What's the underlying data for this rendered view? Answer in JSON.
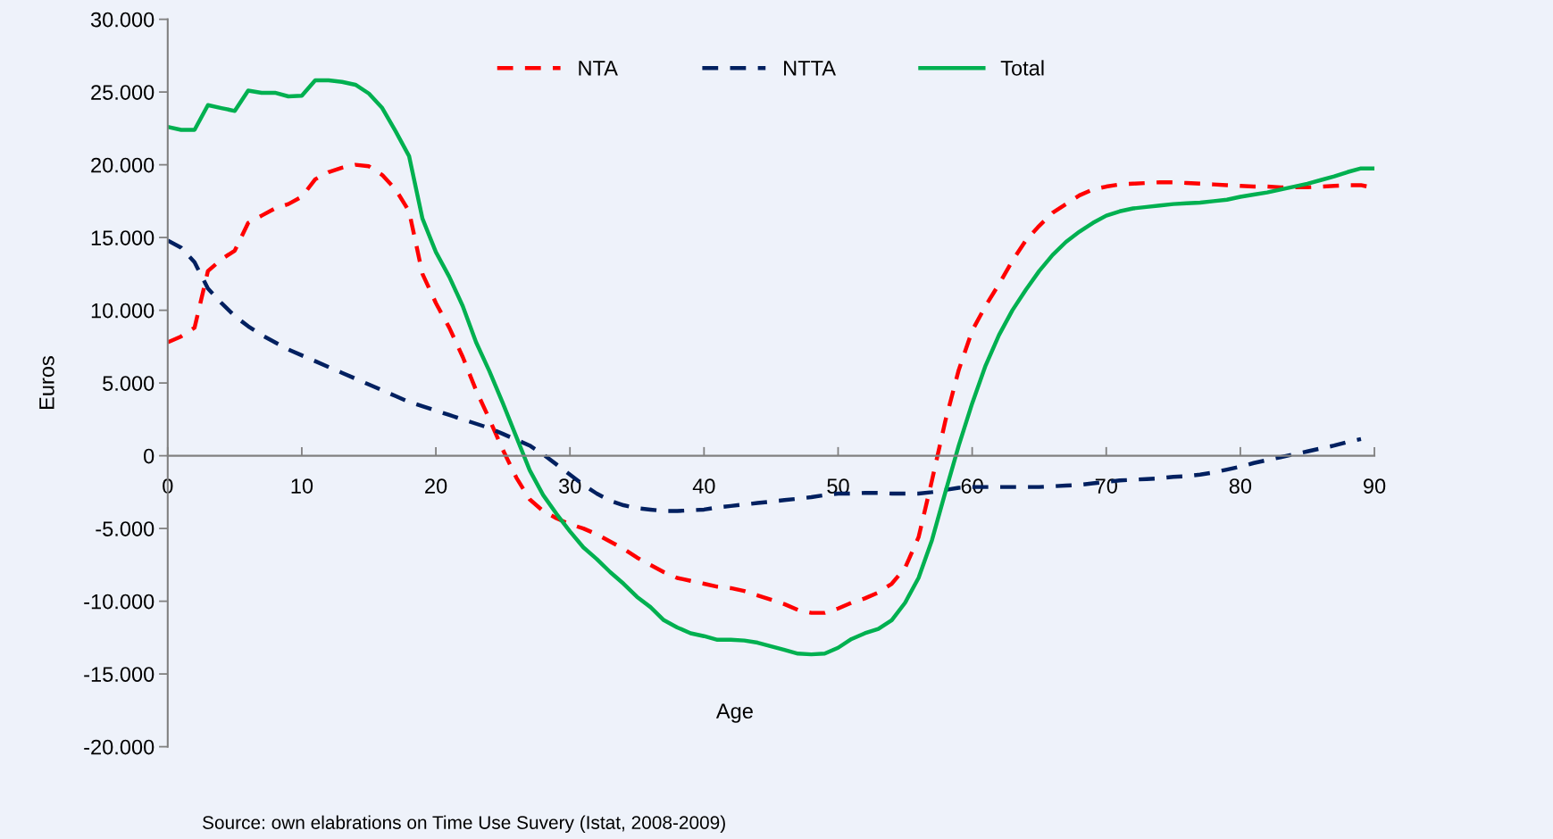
{
  "chart_data": {
    "type": "line",
    "xlabel": "Age",
    "ylabel": "Euros",
    "annotations": [
      "Source: own elabrations on Time Use Suvery (Istat, 2008-2009)"
    ],
    "x": [
      0,
      1,
      2,
      3,
      4,
      5,
      6,
      7,
      8,
      9,
      10,
      11,
      12,
      13,
      14,
      15,
      16,
      17,
      18,
      19,
      20,
      21,
      22,
      23,
      24,
      25,
      26,
      27,
      28,
      29,
      30,
      31,
      32,
      33,
      34,
      35,
      36,
      37,
      38,
      39,
      40,
      41,
      42,
      43,
      44,
      45,
      46,
      47,
      48,
      49,
      50,
      51,
      52,
      53,
      54,
      55,
      56,
      57,
      58,
      59,
      60,
      61,
      62,
      63,
      64,
      65,
      66,
      67,
      68,
      69,
      70,
      71,
      72,
      73,
      74,
      75,
      76,
      77,
      78,
      79,
      80,
      81,
      82,
      83,
      84,
      85,
      86,
      87,
      88,
      89,
      90
    ],
    "series": [
      {
        "name": "NTA",
        "color": "#ff0000",
        "line_style": "dashed",
        "values": [
          7800,
          8200,
          8800,
          12700,
          13500,
          14100,
          16000,
          16500,
          17000,
          17300,
          17800,
          19000,
          19500,
          19800,
          20000,
          19900,
          19300,
          18300,
          16800,
          12500,
          10500,
          8800,
          6800,
          4500,
          2500,
          400,
          -1500,
          -3000,
          -3800,
          -4300,
          -4700,
          -5000,
          -5400,
          -5900,
          -6400,
          -7000,
          -7500,
          -8000,
          -8400,
          -8600,
          -8800,
          -9000,
          -9100,
          -9300,
          -9600,
          -9900,
          -10200,
          -10600,
          -10800,
          -10800,
          -10500,
          -10100,
          -9800,
          -9400,
          -8800,
          -7700,
          -5600,
          -1700,
          2400,
          5900,
          8600,
          10300,
          11800,
          13400,
          14800,
          15800,
          16700,
          17300,
          17900,
          18300,
          18500,
          18650,
          18700,
          18750,
          18800,
          18800,
          18750,
          18700,
          18650,
          18600,
          18550,
          18500,
          18500,
          18450,
          18450,
          18450,
          18500,
          18550,
          18600,
          18600,
          18400
        ]
      },
      {
        "name": "NTTA",
        "color": "#002060",
        "line_style": "dashed",
        "values": [
          14800,
          14300,
          13300,
          11500,
          10500,
          9600,
          8900,
          8300,
          7800,
          7300,
          6900,
          6500,
          6100,
          5700,
          5300,
          4900,
          4500,
          4100,
          3700,
          3400,
          3100,
          2800,
          2500,
          2200,
          1900,
          1500,
          1100,
          700,
          100,
          -600,
          -1300,
          -2000,
          -2600,
          -3100,
          -3400,
          -3600,
          -3700,
          -3800,
          -3800,
          -3750,
          -3700,
          -3550,
          -3450,
          -3350,
          -3250,
          -3150,
          -3050,
          -2950,
          -2850,
          -2700,
          -2600,
          -2600,
          -2550,
          -2550,
          -2600,
          -2600,
          -2600,
          -2500,
          -2350,
          -2200,
          -2150,
          -2150,
          -2150,
          -2150,
          -2150,
          -2150,
          -2100,
          -2050,
          -2000,
          -1900,
          -1800,
          -1700,
          -1650,
          -1600,
          -1550,
          -1450,
          -1400,
          -1300,
          -1150,
          -950,
          -750,
          -500,
          -300,
          -100,
          100,
          300,
          500,
          700,
          950,
          1150,
          null
        ]
      },
      {
        "name": "Total",
        "color": "#00b050",
        "line_style": "solid",
        "values": [
          22600,
          22400,
          22400,
          24100,
          23900,
          23700,
          25100,
          24950,
          24950,
          24700,
          24750,
          25800,
          25800,
          25700,
          25500,
          24900,
          23900,
          22300,
          20600,
          16300,
          14000,
          12300,
          10300,
          7800,
          5800,
          3600,
          1300,
          -1000,
          -2700,
          -4000,
          -5200,
          -6300,
          -7100,
          -8000,
          -8800,
          -9700,
          -10400,
          -11300,
          -11800,
          -12200,
          -12400,
          -12650,
          -12650,
          -12700,
          -12850,
          -13100,
          -13350,
          -13600,
          -13650,
          -13600,
          -13200,
          -12600,
          -12200,
          -11900,
          -11300,
          -10100,
          -8400,
          -5800,
          -2500,
          700,
          3600,
          6200,
          8300,
          10000,
          11400,
          12700,
          13800,
          14700,
          15400,
          16000,
          16500,
          16800,
          17000,
          17100,
          17200,
          17300,
          17350,
          17400,
          17500,
          17600,
          17800,
          17950,
          18100,
          18300,
          18500,
          18700,
          18950,
          19200,
          19500,
          19750,
          19750
        ]
      }
    ],
    "xlim": [
      0,
      90
    ],
    "xticks": [
      0,
      10,
      20,
      30,
      40,
      50,
      60,
      70,
      80,
      90
    ],
    "ylim": [
      -20000,
      30000
    ],
    "yticks": [
      {
        "value": -20000,
        "label": "-20.000"
      },
      {
        "value": -15000,
        "label": "-15.000"
      },
      {
        "value": -10000,
        "label": "-10.000"
      },
      {
        "value": -5000,
        "label": "-5.000"
      },
      {
        "value": 0,
        "label": "0"
      },
      {
        "value": 5000,
        "label": "5.000"
      },
      {
        "value": 10000,
        "label": "10.000"
      },
      {
        "value": 15000,
        "label": "15.000"
      },
      {
        "value": 20000,
        "label": "20.000"
      },
      {
        "value": 25000,
        "label": "25.000"
      },
      {
        "value": 30000,
        "label": "30.000"
      }
    ],
    "grid": false,
    "legend": "top",
    "marker": "none"
  }
}
